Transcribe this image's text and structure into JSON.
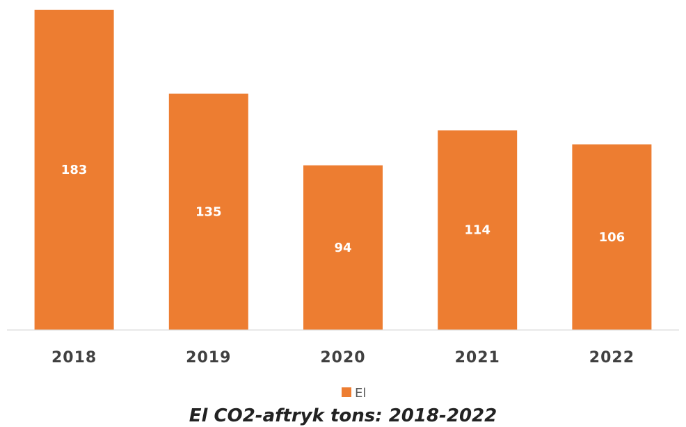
{
  "chart_data": {
    "type": "bar",
    "categories": [
      "2018",
      "2019",
      "2020",
      "2021",
      "2022"
    ],
    "series": [
      {
        "name": "El",
        "values": [
          183,
          135,
          94,
          114,
          106
        ]
      }
    ],
    "title": "",
    "caption": "El CO2-aftryk tons: 2018-2022",
    "xlabel": "",
    "ylabel": "",
    "ylim": [
      0,
      190
    ],
    "grid": false,
    "legend": "bottom",
    "colors": {
      "bar": "#ED7D31",
      "axis": "#D9D9D9"
    }
  }
}
